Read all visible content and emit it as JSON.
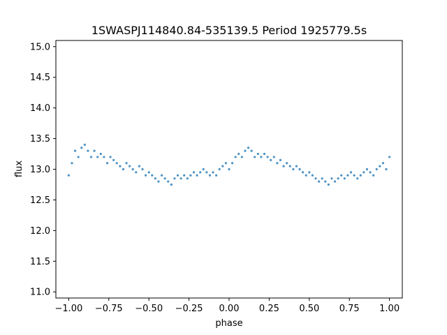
{
  "chart_data": {
    "type": "scatter",
    "title": "1SWASPJ114840.84-535139.5 Period 1925779.5s",
    "xlabel": "phase",
    "ylabel": "flux",
    "xlim": [
      -1.08,
      1.08
    ],
    "ylim": [
      10.9,
      15.1
    ],
    "xticks": [
      -1.0,
      -0.75,
      -0.5,
      -0.25,
      0.0,
      0.25,
      0.5,
      0.75,
      1.0
    ],
    "xtick_labels": [
      "−1.00",
      "−0.75",
      "−0.50",
      "−0.25",
      "0.00",
      "0.25",
      "0.50",
      "0.75",
      "1.00"
    ],
    "yticks": [
      11.0,
      11.5,
      12.0,
      12.5,
      13.0,
      13.5,
      14.0,
      14.5,
      15.0
    ],
    "ytick_labels": [
      "11.0",
      "11.5",
      "12.0",
      "12.5",
      "13.0",
      "13.5",
      "14.0",
      "14.5",
      "15.0"
    ],
    "marker_color": "#1f77b4",
    "grid": false,
    "series": [
      {
        "points": [
          [
            -1.0,
            12.9
          ],
          [
            -0.98,
            13.1
          ],
          [
            -0.96,
            13.3
          ],
          [
            -0.94,
            13.2
          ],
          [
            -0.92,
            13.35
          ],
          [
            -0.9,
            13.4
          ],
          [
            -0.88,
            13.3
          ],
          [
            -0.86,
            13.2
          ],
          [
            -0.84,
            13.3
          ],
          [
            -0.82,
            13.2
          ],
          [
            -0.8,
            13.25
          ],
          [
            -0.78,
            13.2
          ],
          [
            -0.76,
            13.1
          ],
          [
            -0.74,
            13.2
          ],
          [
            -0.72,
            13.15
          ],
          [
            -0.7,
            13.1
          ],
          [
            -0.68,
            13.05
          ],
          [
            -0.66,
            13.0
          ],
          [
            -0.64,
            13.1
          ],
          [
            -0.62,
            13.05
          ],
          [
            -0.6,
            13.0
          ],
          [
            -0.58,
            12.95
          ],
          [
            -0.56,
            13.05
          ],
          [
            -0.54,
            13.0
          ],
          [
            -0.52,
            12.9
          ],
          [
            -0.5,
            12.95
          ],
          [
            -0.48,
            12.9
          ],
          [
            -0.46,
            12.85
          ],
          [
            -0.44,
            12.8
          ],
          [
            -0.42,
            12.9
          ],
          [
            -0.4,
            12.85
          ],
          [
            -0.38,
            12.8
          ],
          [
            -0.36,
            12.75
          ],
          [
            -0.34,
            12.85
          ],
          [
            -0.32,
            12.9
          ],
          [
            -0.3,
            12.85
          ],
          [
            -0.28,
            12.9
          ],
          [
            -0.26,
            12.85
          ],
          [
            -0.24,
            12.9
          ],
          [
            -0.22,
            12.95
          ],
          [
            -0.2,
            12.9
          ],
          [
            -0.18,
            12.95
          ],
          [
            -0.16,
            13.0
          ],
          [
            -0.14,
            12.95
          ],
          [
            -0.12,
            12.9
          ],
          [
            -0.1,
            12.95
          ],
          [
            -0.08,
            12.9
          ],
          [
            -0.06,
            13.0
          ],
          [
            -0.04,
            13.05
          ],
          [
            -0.02,
            13.1
          ],
          [
            0.0,
            13.0
          ],
          [
            0.02,
            13.1
          ],
          [
            0.04,
            13.2
          ],
          [
            0.06,
            13.25
          ],
          [
            0.08,
            13.2
          ],
          [
            0.1,
            13.3
          ],
          [
            0.12,
            13.35
          ],
          [
            0.14,
            13.3
          ],
          [
            0.16,
            13.2
          ],
          [
            0.18,
            13.25
          ],
          [
            0.2,
            13.2
          ],
          [
            0.22,
            13.25
          ],
          [
            0.24,
            13.2
          ],
          [
            0.26,
            13.15
          ],
          [
            0.28,
            13.2
          ],
          [
            0.3,
            13.1
          ],
          [
            0.32,
            13.15
          ],
          [
            0.34,
            13.05
          ],
          [
            0.36,
            13.1
          ],
          [
            0.38,
            13.05
          ],
          [
            0.4,
            13.0
          ],
          [
            0.42,
            13.05
          ],
          [
            0.44,
            13.0
          ],
          [
            0.46,
            12.95
          ],
          [
            0.48,
            12.9
          ],
          [
            0.5,
            12.95
          ],
          [
            0.52,
            12.9
          ],
          [
            0.54,
            12.85
          ],
          [
            0.56,
            12.8
          ],
          [
            0.58,
            12.85
          ],
          [
            0.6,
            12.8
          ],
          [
            0.62,
            12.75
          ],
          [
            0.64,
            12.85
          ],
          [
            0.66,
            12.8
          ],
          [
            0.68,
            12.85
          ],
          [
            0.7,
            12.9
          ],
          [
            0.72,
            12.85
          ],
          [
            0.74,
            12.9
          ],
          [
            0.76,
            12.95
          ],
          [
            0.78,
            12.9
          ],
          [
            0.8,
            12.85
          ],
          [
            0.82,
            12.9
          ],
          [
            0.84,
            12.95
          ],
          [
            0.86,
            13.0
          ],
          [
            0.88,
            12.95
          ],
          [
            0.9,
            12.9
          ],
          [
            0.92,
            13.0
          ],
          [
            0.94,
            13.05
          ],
          [
            0.96,
            13.1
          ],
          [
            0.98,
            13.0
          ],
          [
            1.0,
            13.2
          ]
        ]
      }
    ]
  }
}
